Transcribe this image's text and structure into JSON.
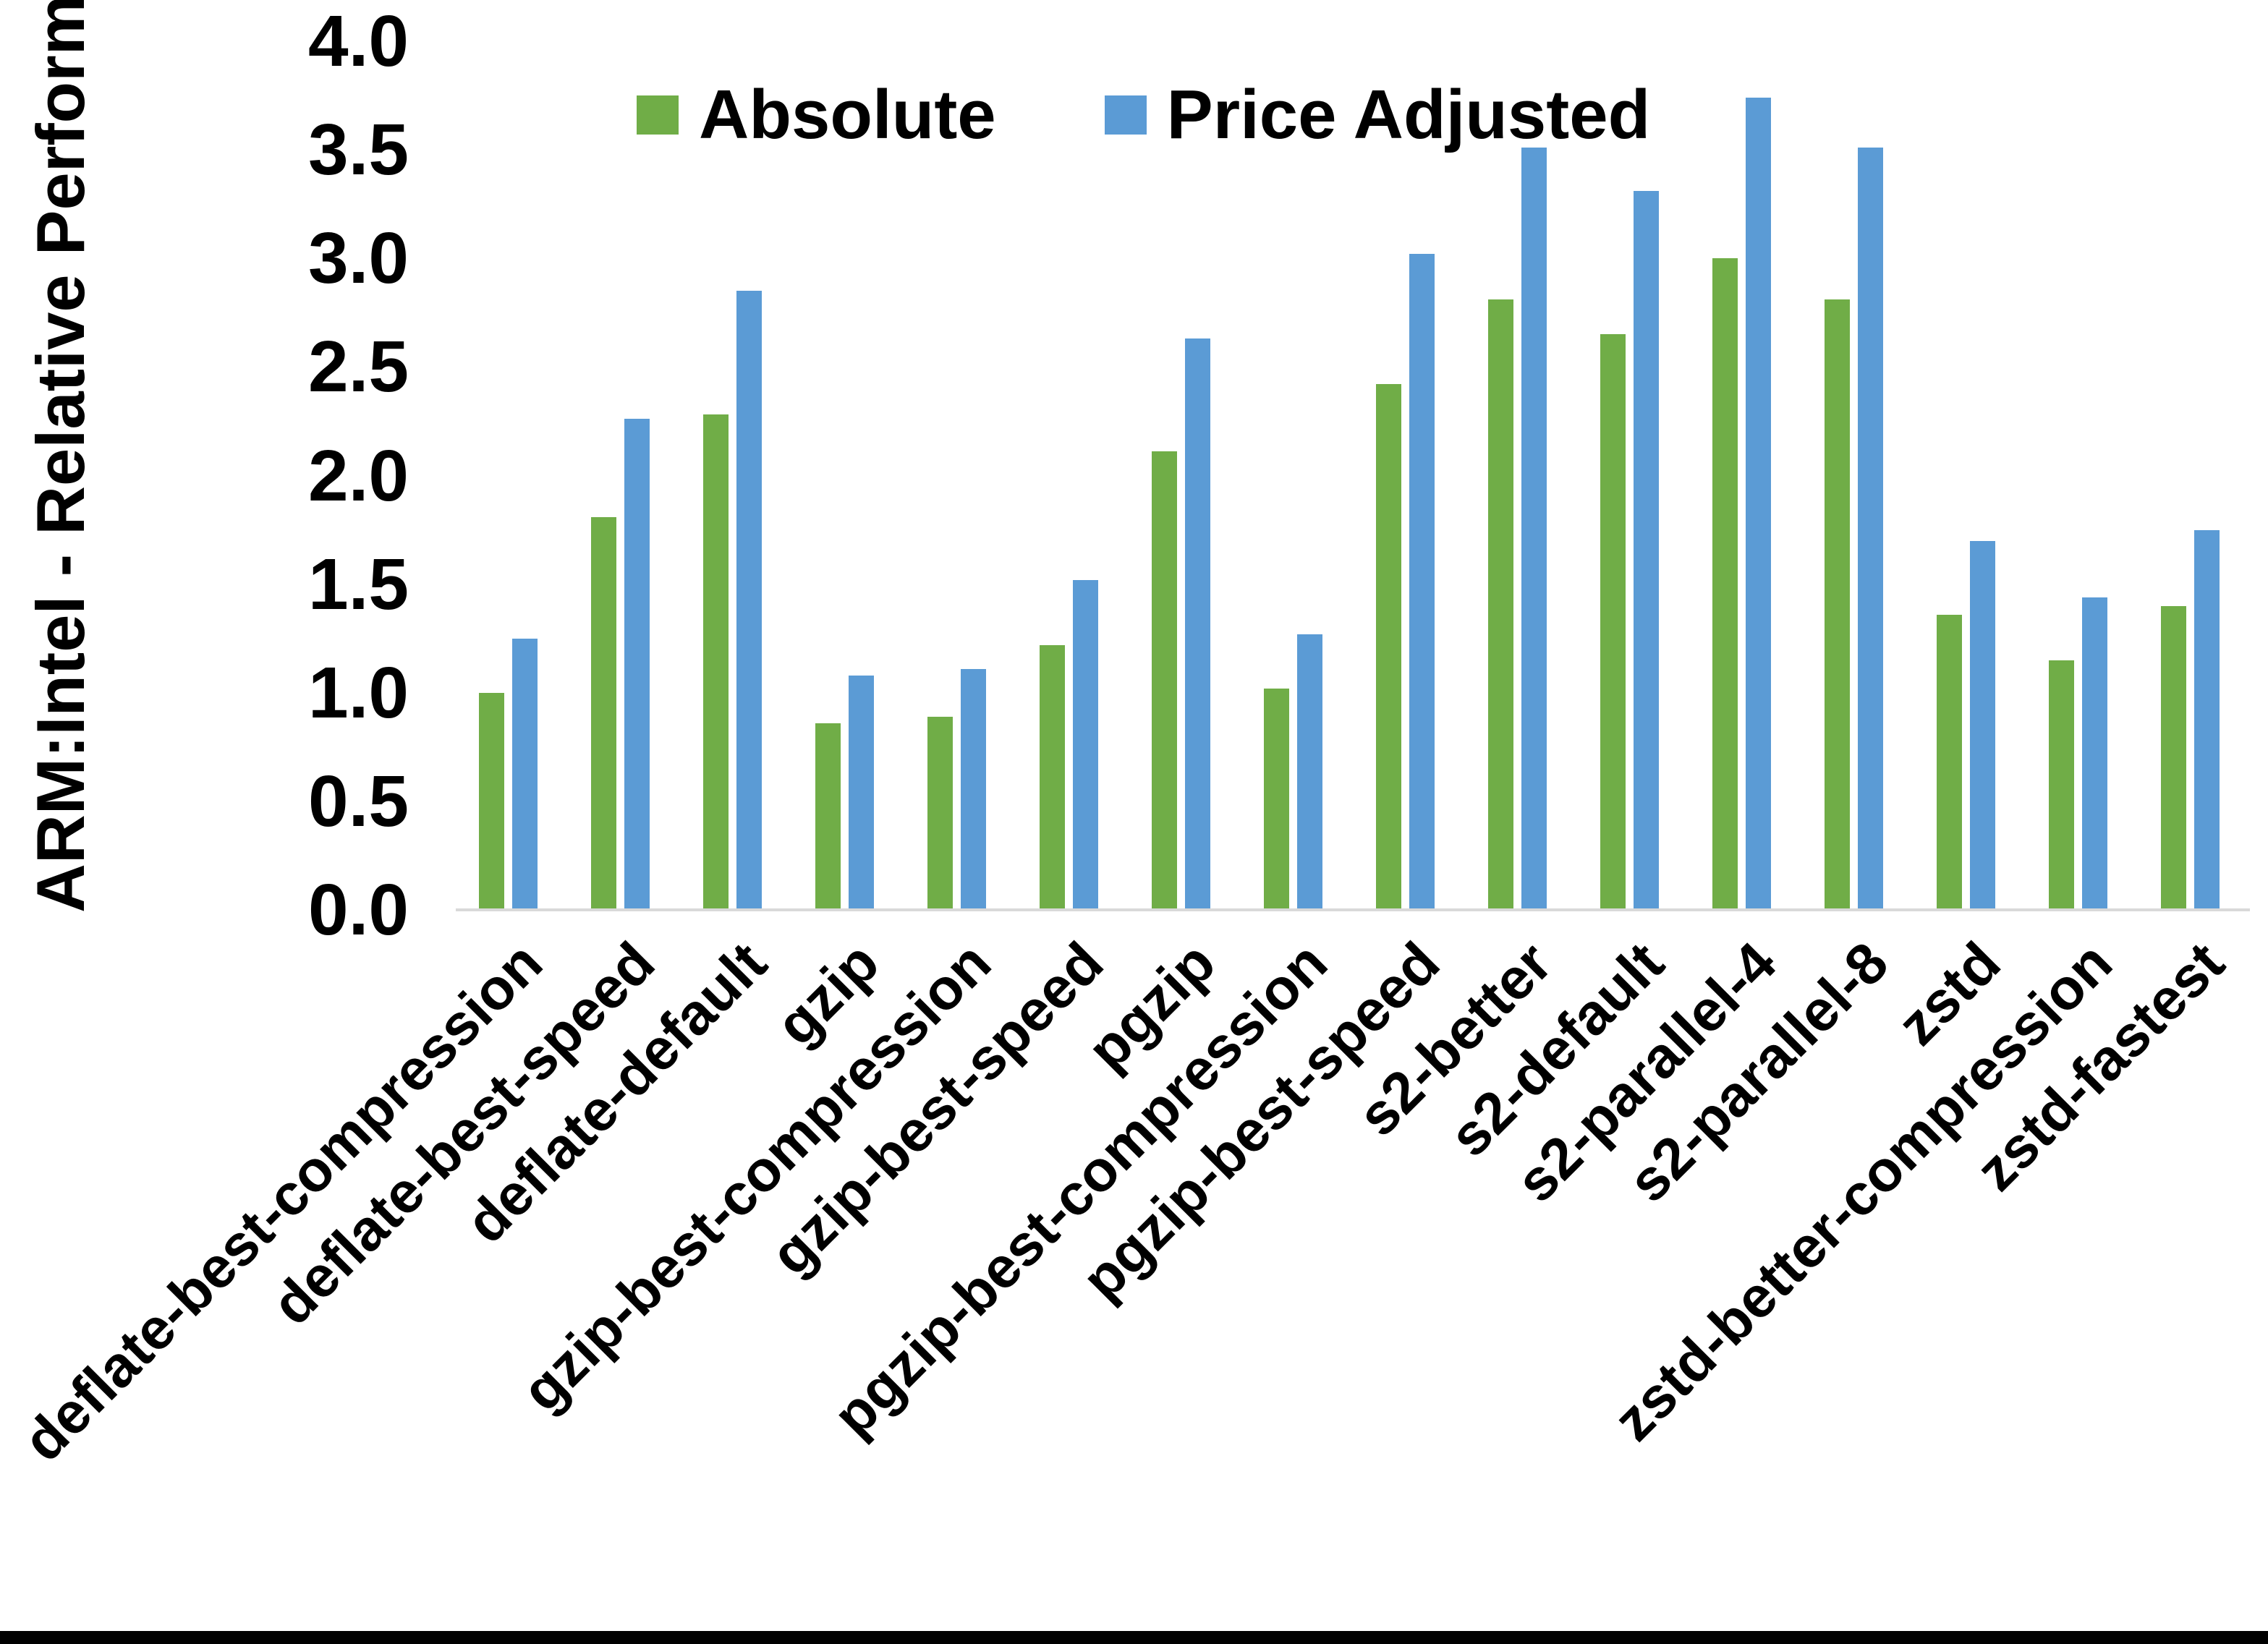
{
  "chart_data": {
    "type": "bar",
    "title": "",
    "xlabel": "",
    "ylabel": "ARM:Intel - Relative Performance",
    "ylim": [
      0.0,
      4.0
    ],
    "ytick_step": 0.5,
    "yticks": [
      0.0,
      0.5,
      1.0,
      1.5,
      2.0,
      2.5,
      3.0,
      3.5,
      4.0
    ],
    "ytick_decimals": 1,
    "grid": false,
    "legend_position": "top-center",
    "x_label_rotation_deg": 45,
    "categories": [
      "deflate-best-compression",
      "deflate-best-speed",
      "deflate-default",
      "gzip",
      "gzip-best-compression",
      "gzip-best-speed",
      "pgzip",
      "pgzip-best-compression",
      "pgzip-best-speed",
      "s2-better",
      "s2-default",
      "s2-parallel-4",
      "s2-parallel-8",
      "zstd",
      "zstd-better-compression",
      "zstd-fastest"
    ],
    "series": [
      {
        "name": "Absolute",
        "color": "#70AD47",
        "values": [
          1.0,
          1.81,
          2.28,
          0.86,
          0.89,
          1.22,
          2.11,
          1.02,
          2.42,
          2.81,
          2.65,
          3.0,
          2.81,
          1.36,
          1.15,
          1.4
        ]
      },
      {
        "name": "Price Adjusted",
        "color": "#5B9BD5",
        "values": [
          1.25,
          2.26,
          2.85,
          1.08,
          1.11,
          1.52,
          2.63,
          1.27,
          3.02,
          3.51,
          3.31,
          3.74,
          3.51,
          1.7,
          1.44,
          1.75
        ]
      }
    ],
    "colors": {
      "axis_line": "#d9d9d9",
      "text": "#000000",
      "background": "#ffffff",
      "bottom_border": "#000000"
    }
  }
}
